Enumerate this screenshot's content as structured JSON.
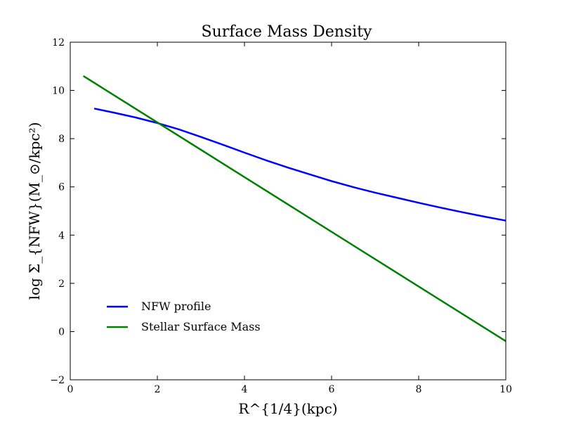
{
  "chart_data": {
    "type": "line",
    "title": "Surface Mass Density",
    "xlabel": "R^{1/4}(kpc)",
    "ylabel": "log Σ_{NFW}(M_⊙/kpc²)",
    "xlim": [
      0,
      10
    ],
    "ylim": [
      -2,
      12
    ],
    "xticks": [
      0,
      2,
      4,
      6,
      8,
      10
    ],
    "yticks": [
      -2,
      0,
      2,
      4,
      6,
      8,
      10,
      12
    ],
    "grid": false,
    "legend_position": "lower-left",
    "series": [
      {
        "name": "NFW profile",
        "color": "#0000ff",
        "x": [
          0.55,
          1.0,
          1.5,
          2.0,
          2.5,
          3.0,
          3.5,
          4.0,
          4.5,
          5.0,
          5.5,
          6.0,
          6.5,
          7.0,
          7.5,
          8.0,
          8.5,
          9.0,
          9.5,
          10.0
        ],
        "y": [
          9.25,
          9.08,
          8.88,
          8.65,
          8.38,
          8.07,
          7.75,
          7.42,
          7.1,
          6.8,
          6.52,
          6.24,
          5.99,
          5.76,
          5.55,
          5.34,
          5.14,
          4.95,
          4.77,
          4.6
        ]
      },
      {
        "name": "Stellar Surface Mass",
        "color": "#008000",
        "x": [
          0.3,
          10.0
        ],
        "y": [
          10.6,
          -0.4
        ]
      }
    ]
  }
}
